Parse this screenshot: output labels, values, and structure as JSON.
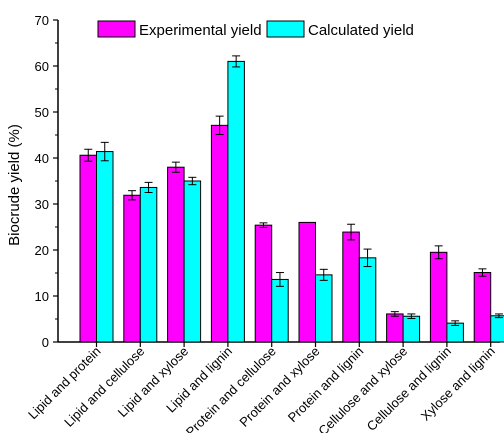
{
  "chart_data": {
    "type": "bar",
    "title": "",
    "xlabel": "",
    "ylabel": "Biocrude yield (%)",
    "ylim": [
      0,
      70
    ],
    "yticks": [
      0,
      10,
      20,
      30,
      40,
      50,
      60,
      70
    ],
    "legend_position": "top-center",
    "categories": [
      "Lipid and protein",
      "Lipid and cellulose",
      "Lipid and  xylose",
      "Lipid and lignin",
      "Protein and cellulose",
      "Protein and xylose",
      "Protein and lignin",
      "Cellulose and xylose",
      "Cellulose and lignin",
      "Xylose and lignin"
    ],
    "series": [
      {
        "name": "Experimental yield",
        "color": "#ff00ff",
        "values": [
          40.6,
          31.9,
          38.0,
          47.1,
          25.4,
          26.0,
          23.9,
          6.1,
          19.5,
          15.1
        ],
        "errors": [
          1.3,
          1.0,
          1.1,
          2.0,
          0.5,
          0.0,
          1.7,
          0.5,
          1.4,
          0.8
        ]
      },
      {
        "name": "Calculated yield",
        "color": "#00ffff",
        "values": [
          41.4,
          33.6,
          35.0,
          61.0,
          13.6,
          14.6,
          18.3,
          5.6,
          4.1,
          5.7
        ],
        "errors": [
          2.0,
          1.1,
          0.8,
          1.2,
          1.5,
          1.2,
          1.9,
          0.5,
          0.5,
          0.4
        ]
      }
    ]
  }
}
